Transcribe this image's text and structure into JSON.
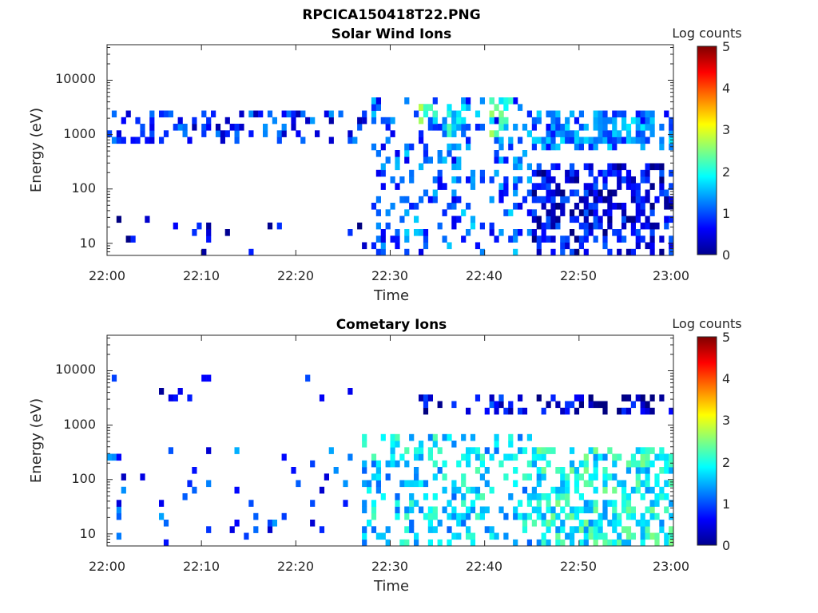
{
  "figure": {
    "title": "RPCICA150418T22.PNG"
  },
  "chart_data": [
    {
      "type": "heatmap",
      "title": "Solar Wind Ions",
      "xlabel": "Time",
      "ylabel": "Energy (eV)",
      "xticks": [
        "22:00",
        "22:10",
        "22:20",
        "22:30",
        "22:40",
        "22:50",
        "23:00"
      ],
      "xlim": [
        "22:00",
        "23:00"
      ],
      "yscale": "log",
      "ylim": [
        6,
        45000
      ],
      "yticks": [
        10,
        100,
        1000,
        10000
      ],
      "yticklabels": [
        "10",
        "100",
        "1000",
        "10000"
      ],
      "colorbar": {
        "label": "Log counts",
        "range": [
          0,
          5
        ],
        "ticks": [
          "0",
          "1",
          "2",
          "3",
          "4",
          "5"
        ],
        "colormap": "jet"
      },
      "grid": false,
      "bands": [
        {
          "t0": 0.0,
          "t1": 27.5,
          "e0": 600,
          "e1": 2500,
          "value": 0.8,
          "density": 0.35
        },
        {
          "t0": 0.0,
          "t1": 28.0,
          "e0": 6,
          "e1": 30,
          "value": 0.3,
          "density": 0.05
        },
        {
          "t0": 28.0,
          "t1": 45.0,
          "e0": 6,
          "e1": 5000,
          "value": 1.1,
          "density": 0.25
        },
        {
          "t0": 33.0,
          "t1": 35.0,
          "e0": 1500,
          "e1": 4000,
          "value": 2.2,
          "density": 0.6
        },
        {
          "t0": 36.0,
          "t1": 38.0,
          "e0": 1000,
          "e1": 4000,
          "value": 2.0,
          "density": 0.55
        },
        {
          "t0": 40.0,
          "t1": 43.0,
          "e0": 800,
          "e1": 5000,
          "value": 2.2,
          "density": 0.55
        },
        {
          "t0": 45.0,
          "t1": 60.0,
          "e0": 500,
          "e1": 3000,
          "value": 1.2,
          "density": 0.6
        },
        {
          "t0": 45.0,
          "t1": 60.0,
          "e0": 6,
          "e1": 300,
          "value": 0.5,
          "density": 0.55
        }
      ]
    },
    {
      "type": "heatmap",
      "title": "Cometary Ions",
      "xlabel": "Time",
      "ylabel": "Energy (eV)",
      "xticks": [
        "22:00",
        "22:10",
        "22:20",
        "22:30",
        "22:40",
        "22:50",
        "23:00"
      ],
      "xlim": [
        "22:00",
        "23:00"
      ],
      "yscale": "log",
      "ylim": [
        6,
        45000
      ],
      "yticks": [
        10,
        100,
        1000,
        10000
      ],
      "yticklabels": [
        "10",
        "100",
        "1000",
        "10000"
      ],
      "colorbar": {
        "label": "Log counts",
        "range": [
          0,
          5
        ],
        "ticks": [
          "0",
          "1",
          "2",
          "3",
          "4",
          "5"
        ],
        "colormap": "jet"
      },
      "grid": false,
      "bands": [
        {
          "t0": 0.0,
          "t1": 27.0,
          "e0": 3000,
          "e1": 8000,
          "value": 0.6,
          "density": 0.05
        },
        {
          "t0": 0.0,
          "t1": 27.0,
          "e0": 6,
          "e1": 400,
          "value": 0.9,
          "density": 0.06
        },
        {
          "t0": 27.0,
          "t1": 45.0,
          "e0": 6,
          "e1": 600,
          "value": 1.7,
          "density": 0.3
        },
        {
          "t0": 33.0,
          "t1": 45.0,
          "e0": 1500,
          "e1": 4000,
          "value": 0.5,
          "density": 0.25
        },
        {
          "t0": 45.0,
          "t1": 60.0,
          "e0": 6,
          "e1": 400,
          "value": 1.9,
          "density": 0.55
        },
        {
          "t0": 45.0,
          "t1": 60.0,
          "e0": 1500,
          "e1": 4000,
          "value": 0.3,
          "density": 0.3
        }
      ]
    }
  ]
}
